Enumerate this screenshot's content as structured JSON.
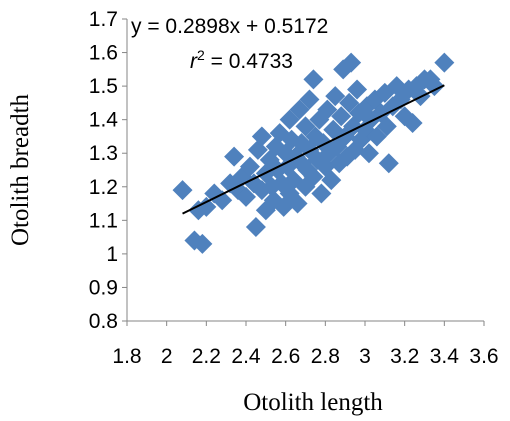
{
  "chart_data": {
    "type": "scatter",
    "title": "",
    "xlabel": "Otolith length",
    "ylabel": "Otolith breadth",
    "xlim": [
      1.8,
      3.6
    ],
    "ylim": [
      0.8,
      1.7
    ],
    "xticks": [
      "1.8",
      "2",
      "2.2",
      "2.4",
      "2.6",
      "2.8",
      "3",
      "3.2",
      "3.4",
      "3.6"
    ],
    "yticks": [
      "0.8",
      "0.9",
      "1",
      "1.1",
      "1.2",
      "1.3",
      "1.4",
      "1.5",
      "1.6",
      "1.7"
    ],
    "grid": false,
    "legend": "none",
    "marker": "diamond",
    "marker_color": "#4f81bd",
    "trendline": {
      "equation": "y = 0.2898x + 0.5172",
      "r2_prefix": "r",
      "r2_sup": "2",
      "r2_value": " = 0.4733",
      "slope": 0.2898,
      "intercept": 0.5172,
      "x_range": [
        2.08,
        3.4
      ],
      "color": "#000000"
    },
    "points": [
      [
        2.08,
        1.19
      ],
      [
        2.14,
        1.04
      ],
      [
        2.16,
        1.13
      ],
      [
        2.18,
        1.03
      ],
      [
        2.2,
        1.14
      ],
      [
        2.24,
        1.18
      ],
      [
        2.28,
        1.16
      ],
      [
        2.32,
        1.21
      ],
      [
        2.34,
        1.29
      ],
      [
        2.36,
        1.19
      ],
      [
        2.38,
        1.23
      ],
      [
        2.4,
        1.17
      ],
      [
        2.42,
        1.26
      ],
      [
        2.44,
        1.21
      ],
      [
        2.45,
        1.08
      ],
      [
        2.46,
        1.31
      ],
      [
        2.48,
        1.19
      ],
      [
        2.48,
        1.35
      ],
      [
        2.5,
        1.24
      ],
      [
        2.5,
        1.13
      ],
      [
        2.52,
        1.28
      ],
      [
        2.53,
        1.2
      ],
      [
        2.54,
        1.16
      ],
      [
        2.55,
        1.32
      ],
      [
        2.56,
        1.25
      ],
      [
        2.57,
        1.36
      ],
      [
        2.58,
        1.21
      ],
      [
        2.59,
        1.14
      ],
      [
        2.6,
        1.3
      ],
      [
        2.61,
        1.26
      ],
      [
        2.62,
        1.4
      ],
      [
        2.62,
        1.18
      ],
      [
        2.63,
        1.34
      ],
      [
        2.64,
        1.22
      ],
      [
        2.65,
        1.29
      ],
      [
        2.66,
        1.15
      ],
      [
        2.67,
        1.43
      ],
      [
        2.68,
        1.27
      ],
      [
        2.68,
        1.33
      ],
      [
        2.7,
        1.38
      ],
      [
        2.7,
        1.2
      ],
      [
        2.71,
        1.25
      ],
      [
        2.72,
        1.31
      ],
      [
        2.72,
        1.46
      ],
      [
        2.74,
        1.52
      ],
      [
        2.74,
        1.23
      ],
      [
        2.75,
        1.35
      ],
      [
        2.76,
        1.28
      ],
      [
        2.77,
        1.4
      ],
      [
        2.78,
        1.18
      ],
      [
        2.79,
        1.33
      ],
      [
        2.8,
        1.26
      ],
      [
        2.81,
        1.43
      ],
      [
        2.82,
        1.3
      ],
      [
        2.83,
        1.22
      ],
      [
        2.84,
        1.37
      ],
      [
        2.85,
        1.47
      ],
      [
        2.86,
        1.32
      ],
      [
        2.87,
        1.27
      ],
      [
        2.88,
        1.41
      ],
      [
        2.89,
        1.55
      ],
      [
        2.9,
        1.35
      ],
      [
        2.91,
        1.29
      ],
      [
        2.92,
        1.45
      ],
      [
        2.93,
        1.57
      ],
      [
        2.94,
        1.38
      ],
      [
        2.95,
        1.31
      ],
      [
        2.96,
        1.49
      ],
      [
        2.97,
        1.42
      ],
      [
        2.98,
        1.34
      ],
      [
        3.0,
        1.37
      ],
      [
        3.01,
        1.44
      ],
      [
        3.02,
        1.3
      ],
      [
        3.03,
        1.4
      ],
      [
        3.05,
        1.46
      ],
      [
        3.06,
        1.35
      ],
      [
        3.08,
        1.42
      ],
      [
        3.1,
        1.48
      ],
      [
        3.11,
        1.38
      ],
      [
        3.12,
        1.27
      ],
      [
        3.14,
        1.44
      ],
      [
        3.16,
        1.5
      ],
      [
        3.18,
        1.46
      ],
      [
        3.2,
        1.41
      ],
      [
        3.22,
        1.49
      ],
      [
        3.24,
        1.39
      ],
      [
        3.26,
        1.5
      ],
      [
        3.28,
        1.47
      ],
      [
        3.3,
        1.52
      ],
      [
        3.33,
        1.52
      ],
      [
        3.35,
        1.5
      ],
      [
        3.4,
        1.57
      ]
    ]
  }
}
